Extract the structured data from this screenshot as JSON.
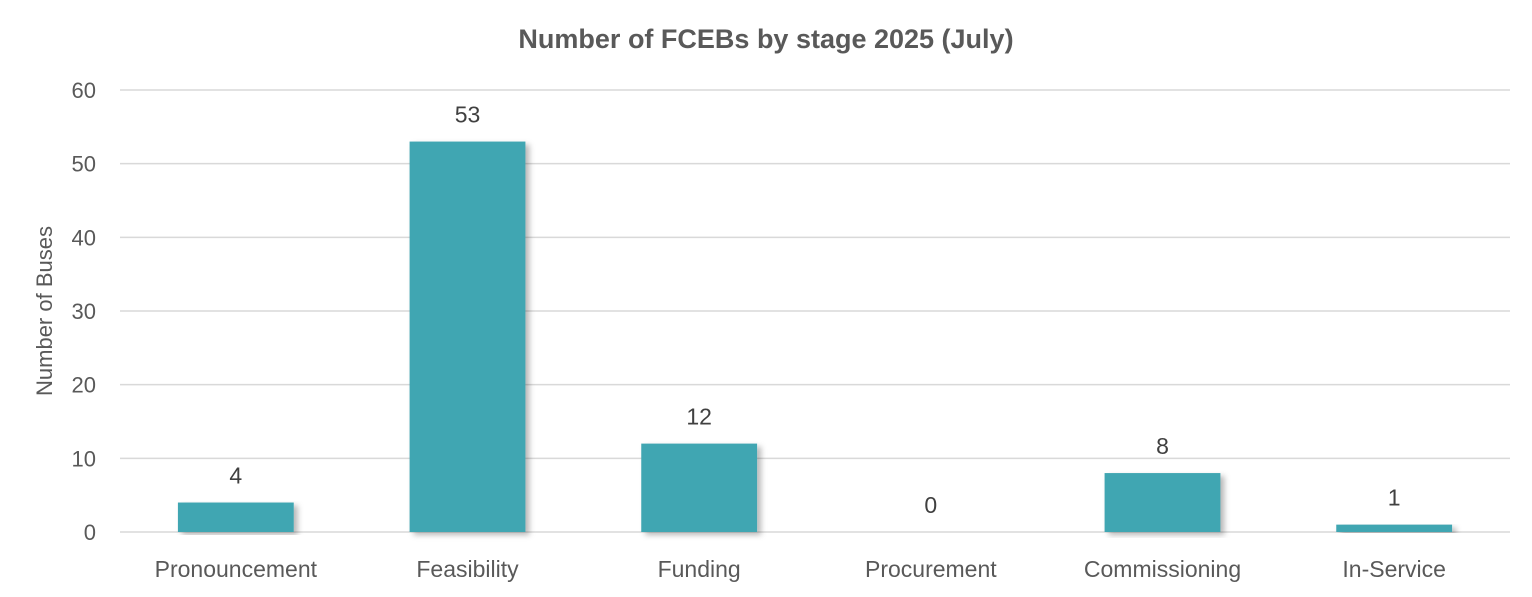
{
  "chart_data": {
    "type": "bar",
    "title": "Number of FCEBs by stage 2025 (July)",
    "xlabel": "",
    "ylabel": "Number of Buses",
    "categories": [
      "Pronouncement",
      "Feasibility",
      "Funding",
      "Procurement",
      "Commissioning",
      "In-Service"
    ],
    "values": [
      4,
      53,
      12,
      0,
      8,
      1
    ],
    "data_labels": [
      "4",
      "53",
      "12",
      "0",
      "8",
      "1"
    ],
    "ylim": [
      0,
      60
    ],
    "yticks": [
      0,
      10,
      20,
      30,
      40,
      50,
      60
    ],
    "grid": true,
    "legend": "none",
    "bar_color": "#41a6b2"
  }
}
